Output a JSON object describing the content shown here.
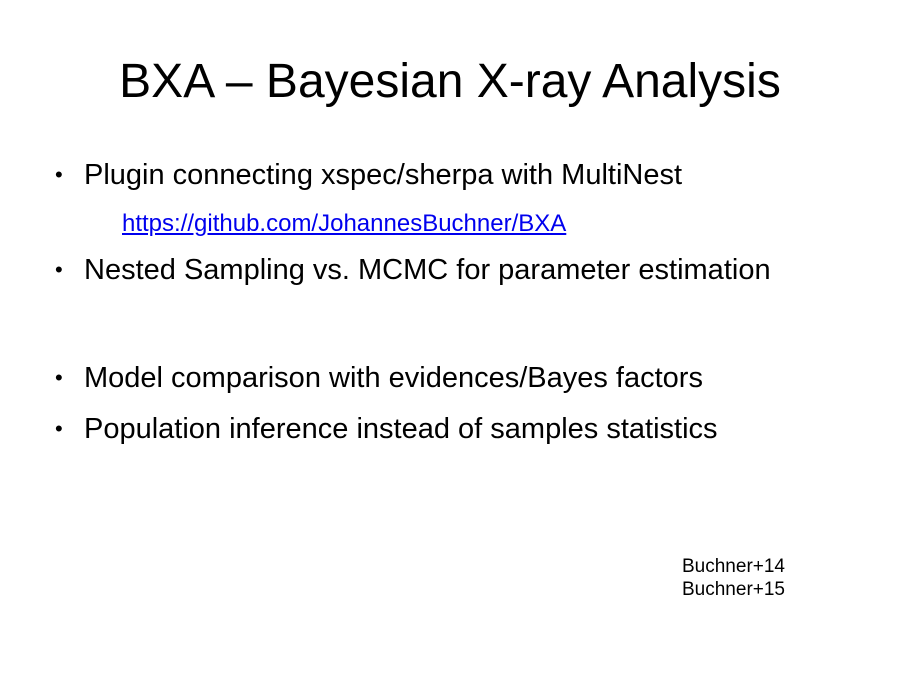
{
  "slide": {
    "title": "BXA – Bayesian X-ray Analysis",
    "bullet_glyph": "•",
    "bullets": [
      "Plugin connecting xspec/sherpa with MultiNest",
      "Nested Sampling vs. MCMC for parameter estimation",
      "Model comparison with evidences/Bayes factors",
      "Population inference instead of samples statistics"
    ],
    "link": "https://github.com/JohannesBuchner/BXA",
    "references": [
      "Buchner+14",
      "Buchner+15"
    ],
    "colors": {
      "text": "#000000",
      "link": "#0000ee",
      "background": "#ffffff"
    }
  }
}
